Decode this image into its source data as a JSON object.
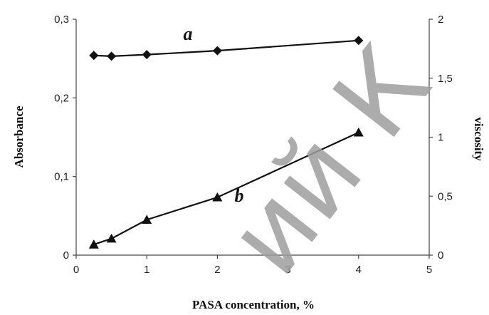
{
  "chart_data": {
    "type": "line",
    "xlabel": "PASA concentration, %",
    "ylabel_left": "Absorbance",
    "ylabel_right": "viscosity",
    "xlim": [
      0,
      5
    ],
    "ylim_left": [
      0,
      0.3
    ],
    "ylim_right": [
      0,
      2
    ],
    "x_ticks": [
      "0",
      "1",
      "2",
      "3",
      "4",
      "5"
    ],
    "y_left_ticks": [
      "0",
      "0,1",
      "0,2",
      "0,3"
    ],
    "y_right_ticks": [
      "0",
      "0,5",
      "1",
      "1,5",
      "2"
    ],
    "grid": false,
    "series": [
      {
        "name": "a",
        "axis": "left",
        "marker": "diamond",
        "x": [
          0.25,
          0.5,
          1,
          2,
          4
        ],
        "y": [
          0.254,
          0.253,
          0.255,
          0.26,
          0.273
        ]
      },
      {
        "name": "b",
        "axis": "right",
        "marker": "triangle",
        "x": [
          0.25,
          0.5,
          1,
          2,
          4
        ],
        "y": [
          0.09,
          0.14,
          0.3,
          0.49,
          1.04
        ]
      }
    ],
    "watermark": "ий К"
  }
}
